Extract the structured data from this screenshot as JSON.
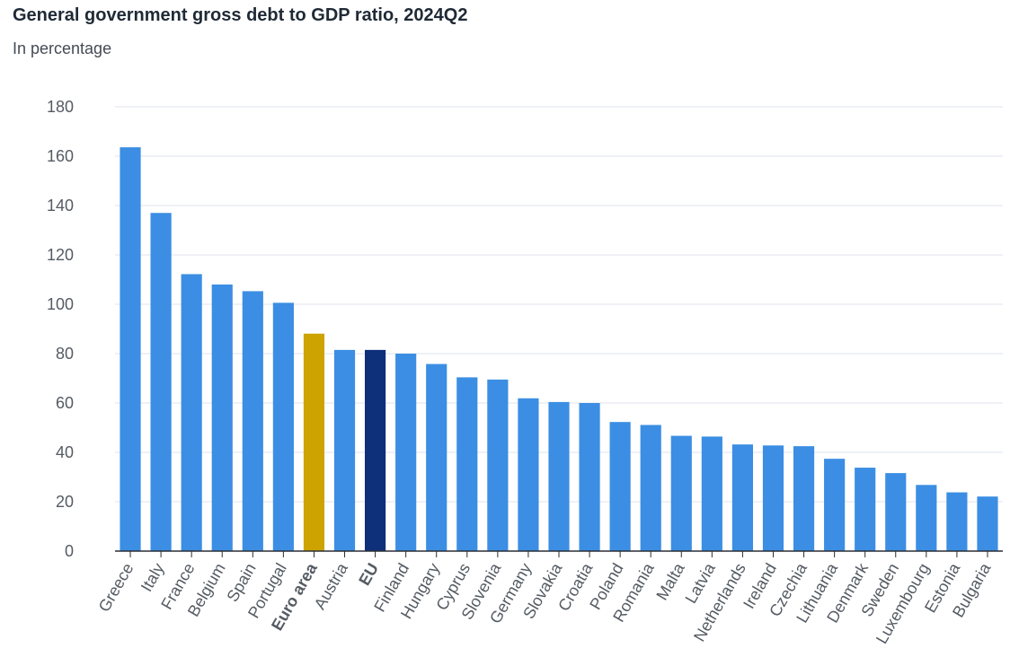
{
  "chart_data": {
    "type": "bar",
    "title": "General government gross debt to GDP ratio, 2024Q2",
    "subtitle": "In percentage",
    "xlabel": "",
    "ylabel": "",
    "ylim": [
      0,
      180
    ],
    "yticks": [
      0,
      20,
      40,
      60,
      80,
      100,
      120,
      140,
      160,
      180
    ],
    "grid": true,
    "categories": [
      "Greece",
      "Italy",
      "France",
      "Belgium",
      "Spain",
      "Portugal",
      "Euro area",
      "Austria",
      "EU",
      "Finland",
      "Hungary",
      "Cyprus",
      "Slovenia",
      "Germany",
      "Slovakia",
      "Croatia",
      "Poland",
      "Romania",
      "Malta",
      "Latvia",
      "Netherlands",
      "Ireland",
      "Czechia",
      "Lithuania",
      "Denmark",
      "Sweden",
      "Luxembourg",
      "Estonia",
      "Bulgaria"
    ],
    "values": [
      163.6,
      137.0,
      112.2,
      108.0,
      105.3,
      100.6,
      88.1,
      81.5,
      81.5,
      80.0,
      75.8,
      70.4,
      69.5,
      61.9,
      60.4,
      60.0,
      52.3,
      51.1,
      46.7,
      46.4,
      43.2,
      42.8,
      42.5,
      37.4,
      33.8,
      31.6,
      26.8,
      23.8,
      22.1
    ],
    "highlight": {
      "Euro area": "#cca300",
      "EU": "#0e2f7a"
    },
    "bold_categories": [
      "Euro area",
      "EU"
    ],
    "colors": {
      "default_bar": "#3b8ee3",
      "grid": "#dfe3ef",
      "axis": "#2a2f36"
    }
  }
}
